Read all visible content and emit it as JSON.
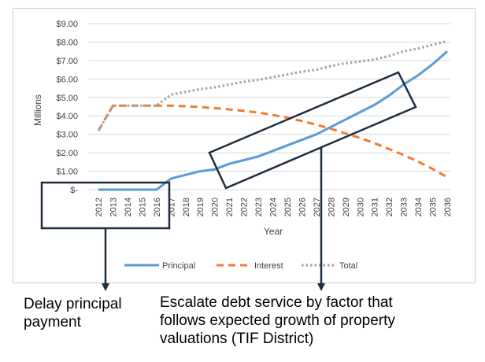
{
  "chart_data": {
    "type": "line",
    "title": "",
    "xlabel": "Year",
    "ylabel": "Millions",
    "x": [
      "2012",
      "2013",
      "2014",
      "2015",
      "2016",
      "2017",
      "2018",
      "2019",
      "2020",
      "2021",
      "2022",
      "2023",
      "2024",
      "2025",
      "2026",
      "2027",
      "2028",
      "2029",
      "2030",
      "2031",
      "2032",
      "2033",
      "2034",
      "2035",
      "2036"
    ],
    "ylim": [
      0,
      9
    ],
    "yticks": [
      "$-",
      "$1.00",
      "$2.00",
      "$3.00",
      "$4.00",
      "$5.00",
      "$6.00",
      "$7.00",
      "$8.00",
      "$9.00"
    ],
    "grid": true,
    "legend": "bottom",
    "series": [
      {
        "name": "Principal",
        "color": "#5b9bd5",
        "style": "solid",
        "values": [
          0,
          0,
          0,
          0,
          0,
          0.6,
          0.8,
          1.0,
          1.1,
          1.4,
          1.6,
          1.8,
          2.1,
          2.4,
          2.7,
          3.0,
          3.4,
          3.8,
          4.2,
          4.6,
          5.1,
          5.7,
          6.2,
          6.8,
          7.5
        ]
      },
      {
        "name": "Interest",
        "color": "#ed7d31",
        "style": "dashed",
        "values": [
          3.2,
          4.55,
          4.55,
          4.55,
          4.55,
          4.55,
          4.52,
          4.48,
          4.42,
          4.35,
          4.27,
          4.18,
          4.05,
          3.9,
          3.72,
          3.52,
          3.3,
          3.05,
          2.8,
          2.52,
          2.2,
          1.88,
          1.52,
          1.12,
          0.68
        ]
      },
      {
        "name": "Total",
        "color": "#a5a5a5",
        "style": "dotted",
        "values": [
          3.2,
          4.55,
          4.55,
          4.55,
          4.55,
          5.15,
          5.3,
          5.45,
          5.55,
          5.7,
          5.85,
          5.95,
          6.1,
          6.25,
          6.4,
          6.5,
          6.7,
          6.85,
          6.95,
          7.05,
          7.25,
          7.5,
          7.65,
          7.85,
          8.05
        ]
      }
    ]
  },
  "annotations": {
    "left_note": "Delay principal\npayment",
    "right_note": "Escalate debt service by factor that\nfollows expected growth of property\nvaluations (TIF District)"
  }
}
